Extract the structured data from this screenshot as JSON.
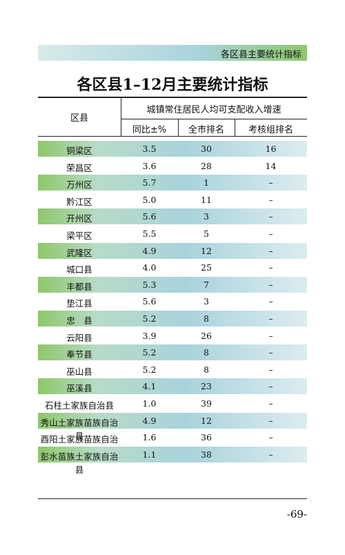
{
  "banner": "各区县主要统计指标",
  "title": "各区县1–12月主要统计指标",
  "table": {
    "header": {
      "district": "区县",
      "group": "城镇常住居民人均可支配收入增速",
      "columns": [
        "同比±%",
        "全市排名",
        "考核组排名"
      ]
    },
    "rows": [
      [
        "铜梁区",
        "3.5",
        "30",
        "16"
      ],
      [
        "荣昌区",
        "3.6",
        "28",
        "14"
      ],
      [
        "万州区",
        "5.7",
        "1",
        "–"
      ],
      [
        "黔江区",
        "5.0",
        "11",
        "–"
      ],
      [
        "开州区",
        "5.6",
        "3",
        "–"
      ],
      [
        "梁平区",
        "5.5",
        "5",
        "–"
      ],
      [
        "武隆区",
        "4.9",
        "12",
        "–"
      ],
      [
        "城口县",
        "4.0",
        "25",
        "–"
      ],
      [
        "丰都县",
        "5.3",
        "7",
        "–"
      ],
      [
        "垫江县",
        "5.6",
        "3",
        "–"
      ],
      [
        "忠　县",
        "5.2",
        "8",
        "–"
      ],
      [
        "云阳县",
        "3.9",
        "26",
        "–"
      ],
      [
        "奉节县",
        "5.2",
        "8",
        "–"
      ],
      [
        "巫山县",
        "5.2",
        "8",
        "–"
      ],
      [
        "巫溪县",
        "4.1",
        "23",
        "–"
      ],
      [
        "石柱土家族自治县",
        "1.0",
        "39",
        "–"
      ],
      [
        "秀山土家族苗族自治县",
        "4.9",
        "12",
        "–"
      ],
      [
        "酉阳土家族苗族自治县",
        "1.6",
        "36",
        "–"
      ],
      [
        "彭水苗族土家族自治县",
        "1.1",
        "38",
        "–"
      ]
    ]
  },
  "page_number": "-69-"
}
